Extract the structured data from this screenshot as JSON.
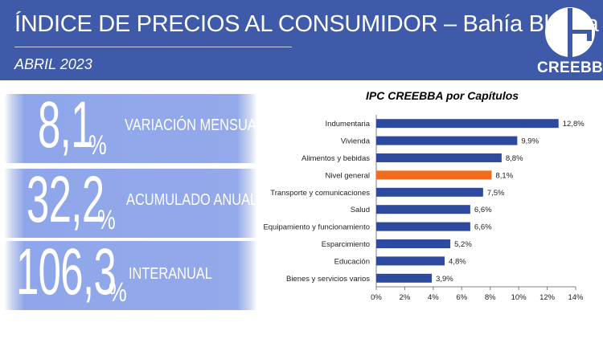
{
  "header": {
    "title": "ÍNDICE DE PRECIOS AL CONSUMIDOR – Bahía Blanca",
    "subtitle": "ABRIL 2023",
    "logo_text": "CREEBBA",
    "color": "#3e5aa8"
  },
  "stats": [
    {
      "value": "8,1",
      "pct": "%",
      "label": "VARIACIÓN MENSUAL"
    },
    {
      "value": "32,2",
      "pct": "%",
      "label": "ACUMULADO ANUAL"
    },
    {
      "value": "106,3",
      "pct": "%",
      "label": "INTERANUAL"
    }
  ],
  "chart_data": {
    "type": "bar",
    "orientation": "horizontal",
    "title": "IPC CREEBBA por Capítulos",
    "categories": [
      "Indumentaria",
      "Vivienda",
      "Alimentos y bebidas",
      "Nivel general",
      "Transporte y comunicaciones",
      "Salud",
      "Equipamiento y funcionamiento",
      "Esparcimiento",
      "Educación",
      "Bienes y servicios varios"
    ],
    "values": [
      12.8,
      9.9,
      8.8,
      8.1,
      7.5,
      6.6,
      6.6,
      5.2,
      4.8,
      3.9
    ],
    "value_labels": [
      "12,8%",
      "9,9%",
      "8,8%",
      "8,1%",
      "7,5%",
      "6,6%",
      "6,6%",
      "5,2%",
      "4,8%",
      "3,9%"
    ],
    "xlim": [
      0,
      14
    ],
    "xticks": [
      "0%",
      "2%",
      "4%",
      "6%",
      "8%",
      "10%",
      "12%",
      "14%"
    ],
    "highlight": "Nivel general",
    "colors": {
      "bar": "#2e4a9e",
      "highlight": "#f26a1b"
    },
    "grid": false
  }
}
